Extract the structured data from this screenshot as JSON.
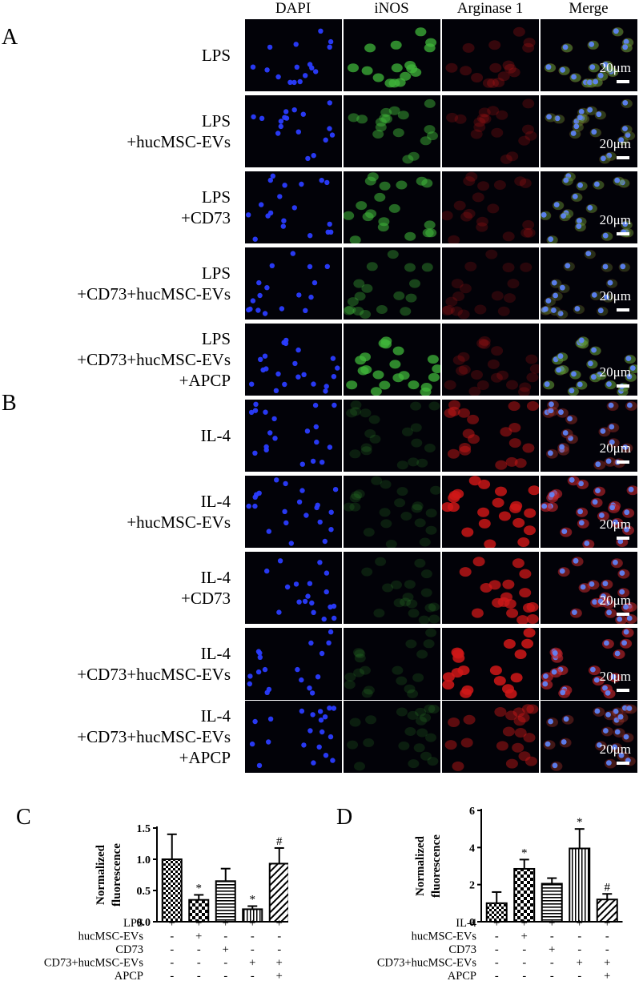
{
  "columns": [
    "DAPI",
    "iNOS",
    "Arginase 1",
    "Merge"
  ],
  "panel_A": "A",
  "panel_B": "B",
  "panel_C": "C",
  "panel_D": "D",
  "scale_bar_label": "20μm",
  "rows_A": [
    {
      "lines": [
        "LPS"
      ],
      "levels": {
        "iNOS": 0.95,
        "Arginase 1": 0.2
      }
    },
    {
      "lines": [
        "LPS",
        "+hucMSC-EVs"
      ],
      "levels": {
        "iNOS": 0.55,
        "Arginase 1": 0.15
      }
    },
    {
      "lines": [
        "LPS",
        "+CD73"
      ],
      "levels": {
        "iNOS": 0.7,
        "Arginase 1": 0.15
      }
    },
    {
      "lines": [
        "LPS",
        "+CD73+hucMSC-EVs"
      ],
      "levels": {
        "iNOS": 0.4,
        "Arginase 1": 0.12
      }
    },
    {
      "lines": [
        "LPS",
        "+CD73+hucMSC-EVs",
        "+APCP"
      ],
      "levels": {
        "iNOS": 0.95,
        "Arginase 1": 0.15
      }
    }
  ],
  "rows_B": [
    {
      "lines": [
        "IL-4"
      ],
      "levels": {
        "iNOS": 0.12,
        "Arginase 1": 0.5
      }
    },
    {
      "lines": [
        "IL-4",
        "+hucMSC-EVs"
      ],
      "levels": {
        "iNOS": 0.12,
        "Arginase 1": 0.95
      }
    },
    {
      "lines": [
        "IL-4",
        "+CD73"
      ],
      "levels": {
        "iNOS": 0.12,
        "Arginase 1": 0.85
      }
    },
    {
      "lines": [
        "IL-4",
        "+CD73+hucMSC-EVs"
      ],
      "levels": {
        "iNOS": 0.12,
        "Arginase 1": 1.0
      }
    },
    {
      "lines": [
        "IL-4",
        "+CD73+hucMSC-EVs",
        "+APCP"
      ],
      "levels": {
        "iNOS": 0.12,
        "Arginase 1": 0.45
      }
    }
  ],
  "chart_data": [
    {
      "type": "bar",
      "panel": "C",
      "ylabel": "Normalized fluorescence",
      "ylim": [
        0,
        1.5
      ],
      "yticks": [
        "0.0",
        "0.5",
        "1.0",
        "1.5"
      ],
      "values": [
        1.0,
        0.35,
        0.65,
        0.2,
        0.93
      ],
      "errors": [
        0.4,
        0.08,
        0.2,
        0.05,
        0.25
      ],
      "annotations": [
        "",
        "*",
        "",
        "*",
        "#"
      ],
      "patterns": [
        "checker",
        "dense-check",
        "horizontal",
        "vertical",
        "diagonal"
      ],
      "table_rows": [
        {
          "label": "LPS",
          "signs": [
            "+",
            "+",
            "+",
            "+",
            "+"
          ]
        },
        {
          "label": "hucMSC-EVs",
          "signs": [
            "-",
            "+",
            "-",
            "-",
            "-"
          ]
        },
        {
          "label": "CD73",
          "signs": [
            "-",
            "-",
            "+",
            "-",
            "-"
          ]
        },
        {
          "label": "CD73+hucMSC-EVs",
          "signs": [
            "-",
            "-",
            "-",
            "+",
            "+"
          ]
        },
        {
          "label": "APCP",
          "signs": [
            "-",
            "-",
            "-",
            "-",
            "+"
          ]
        }
      ]
    },
    {
      "type": "bar",
      "panel": "D",
      "ylabel": "Normalized fluorescence",
      "ylim": [
        0,
        6
      ],
      "yticks": [
        "0",
        "2",
        "4",
        "6"
      ],
      "values": [
        1.0,
        2.85,
        2.05,
        3.95,
        1.2
      ],
      "errors": [
        0.6,
        0.5,
        0.3,
        1.05,
        0.3
      ],
      "annotations": [
        "",
        "*",
        "",
        "*",
        "#"
      ],
      "patterns": [
        "checker",
        "dense-check",
        "horizontal",
        "vertical",
        "diagonal"
      ],
      "table_rows": [
        {
          "label": "IL-4",
          "signs": [
            "+",
            "+",
            "+",
            "+",
            "+"
          ]
        },
        {
          "label": "hucMSC-EVs",
          "signs": [
            "-",
            "+",
            "-",
            "-",
            "-"
          ]
        },
        {
          "label": "CD73",
          "signs": [
            "-",
            "-",
            "+",
            "-",
            "-"
          ]
        },
        {
          "label": "CD73+hucMSC-EVs",
          "signs": [
            "-",
            "-",
            "-",
            "+",
            "+"
          ]
        },
        {
          "label": "APCP",
          "signs": [
            "-",
            "-",
            "-",
            "-",
            "+"
          ]
        }
      ]
    }
  ]
}
